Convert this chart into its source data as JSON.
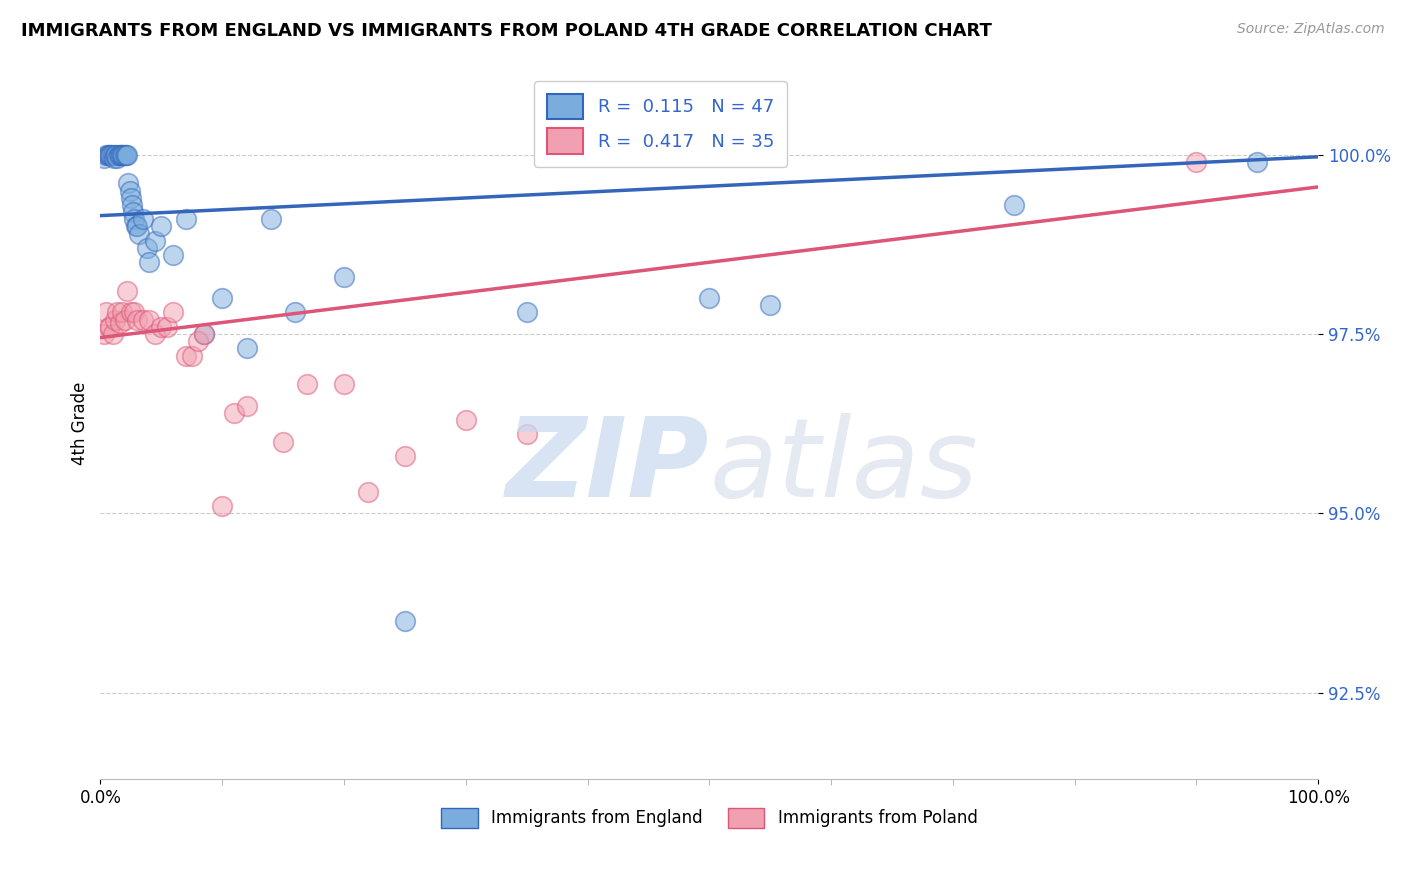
{
  "title": "IMMIGRANTS FROM ENGLAND VS IMMIGRANTS FROM POLAND 4TH GRADE CORRELATION CHART",
  "source": "Source: ZipAtlas.com",
  "ylabel": "4th Grade",
  "y_ticks": [
    92.5,
    95.0,
    97.5,
    100.0
  ],
  "y_tick_labels": [
    "92.5%",
    "95.0%",
    "97.5%",
    "100.0%"
  ],
  "xlim": [
    0.0,
    100.0
  ],
  "ylim": [
    91.3,
    101.2
  ],
  "legend_entry1": "R =  0.115   N = 47",
  "legend_entry2": "R =  0.417   N = 35",
  "england_color": "#7aaddd",
  "poland_color": "#f0a0b0",
  "england_line_color": "#3366bb",
  "poland_line_color": "#dd5577",
  "bottom_legend_england": "Immigrants from England",
  "bottom_legend_poland": "Immigrants from Poland",
  "eng_line_start": 99.15,
  "eng_line_end": 99.97,
  "pol_line_start": 97.45,
  "pol_line_end": 99.55,
  "england_x": [
    0.3,
    0.5,
    0.6,
    0.7,
    0.8,
    0.9,
    1.0,
    1.1,
    1.2,
    1.3,
    1.4,
    1.5,
    1.6,
    1.7,
    1.8,
    1.9,
    2.0,
    2.1,
    2.2,
    2.3,
    2.4,
    2.5,
    2.6,
    2.7,
    2.8,
    2.9,
    3.0,
    3.2,
    3.5,
    3.8,
    4.0,
    4.5,
    5.0,
    6.0,
    7.0,
    8.5,
    10.0,
    12.0,
    14.0,
    16.0,
    20.0,
    25.0,
    35.0,
    50.0,
    55.0,
    75.0,
    95.0
  ],
  "england_y": [
    99.95,
    100.0,
    100.0,
    100.0,
    100.0,
    100.0,
    100.0,
    99.95,
    100.0,
    100.0,
    99.95,
    100.0,
    100.0,
    100.0,
    100.0,
    100.0,
    100.0,
    100.0,
    100.0,
    99.6,
    99.5,
    99.4,
    99.3,
    99.2,
    99.1,
    99.0,
    99.0,
    98.9,
    99.1,
    98.7,
    98.5,
    98.8,
    99.0,
    98.6,
    99.1,
    97.5,
    98.0,
    97.3,
    99.1,
    97.8,
    98.3,
    93.5,
    97.8,
    98.0,
    97.9,
    99.3,
    99.9
  ],
  "poland_x": [
    0.3,
    0.5,
    0.7,
    0.8,
    1.0,
    1.2,
    1.4,
    1.6,
    1.8,
    2.0,
    2.2,
    2.5,
    2.8,
    3.0,
    3.5,
    4.0,
    4.5,
    5.0,
    5.5,
    6.0,
    7.0,
    7.5,
    8.0,
    8.5,
    10.0,
    11.0,
    12.0,
    15.0,
    17.0,
    20.0,
    22.0,
    25.0,
    30.0,
    35.0,
    90.0
  ],
  "poland_y": [
    97.5,
    97.8,
    97.6,
    97.6,
    97.5,
    97.7,
    97.8,
    97.65,
    97.8,
    97.7,
    98.1,
    97.8,
    97.8,
    97.7,
    97.7,
    97.7,
    97.5,
    97.6,
    97.6,
    97.8,
    97.2,
    97.2,
    97.4,
    97.5,
    95.1,
    96.4,
    96.5,
    96.0,
    96.8,
    96.8,
    95.3,
    95.8,
    96.3,
    96.1,
    99.9
  ]
}
